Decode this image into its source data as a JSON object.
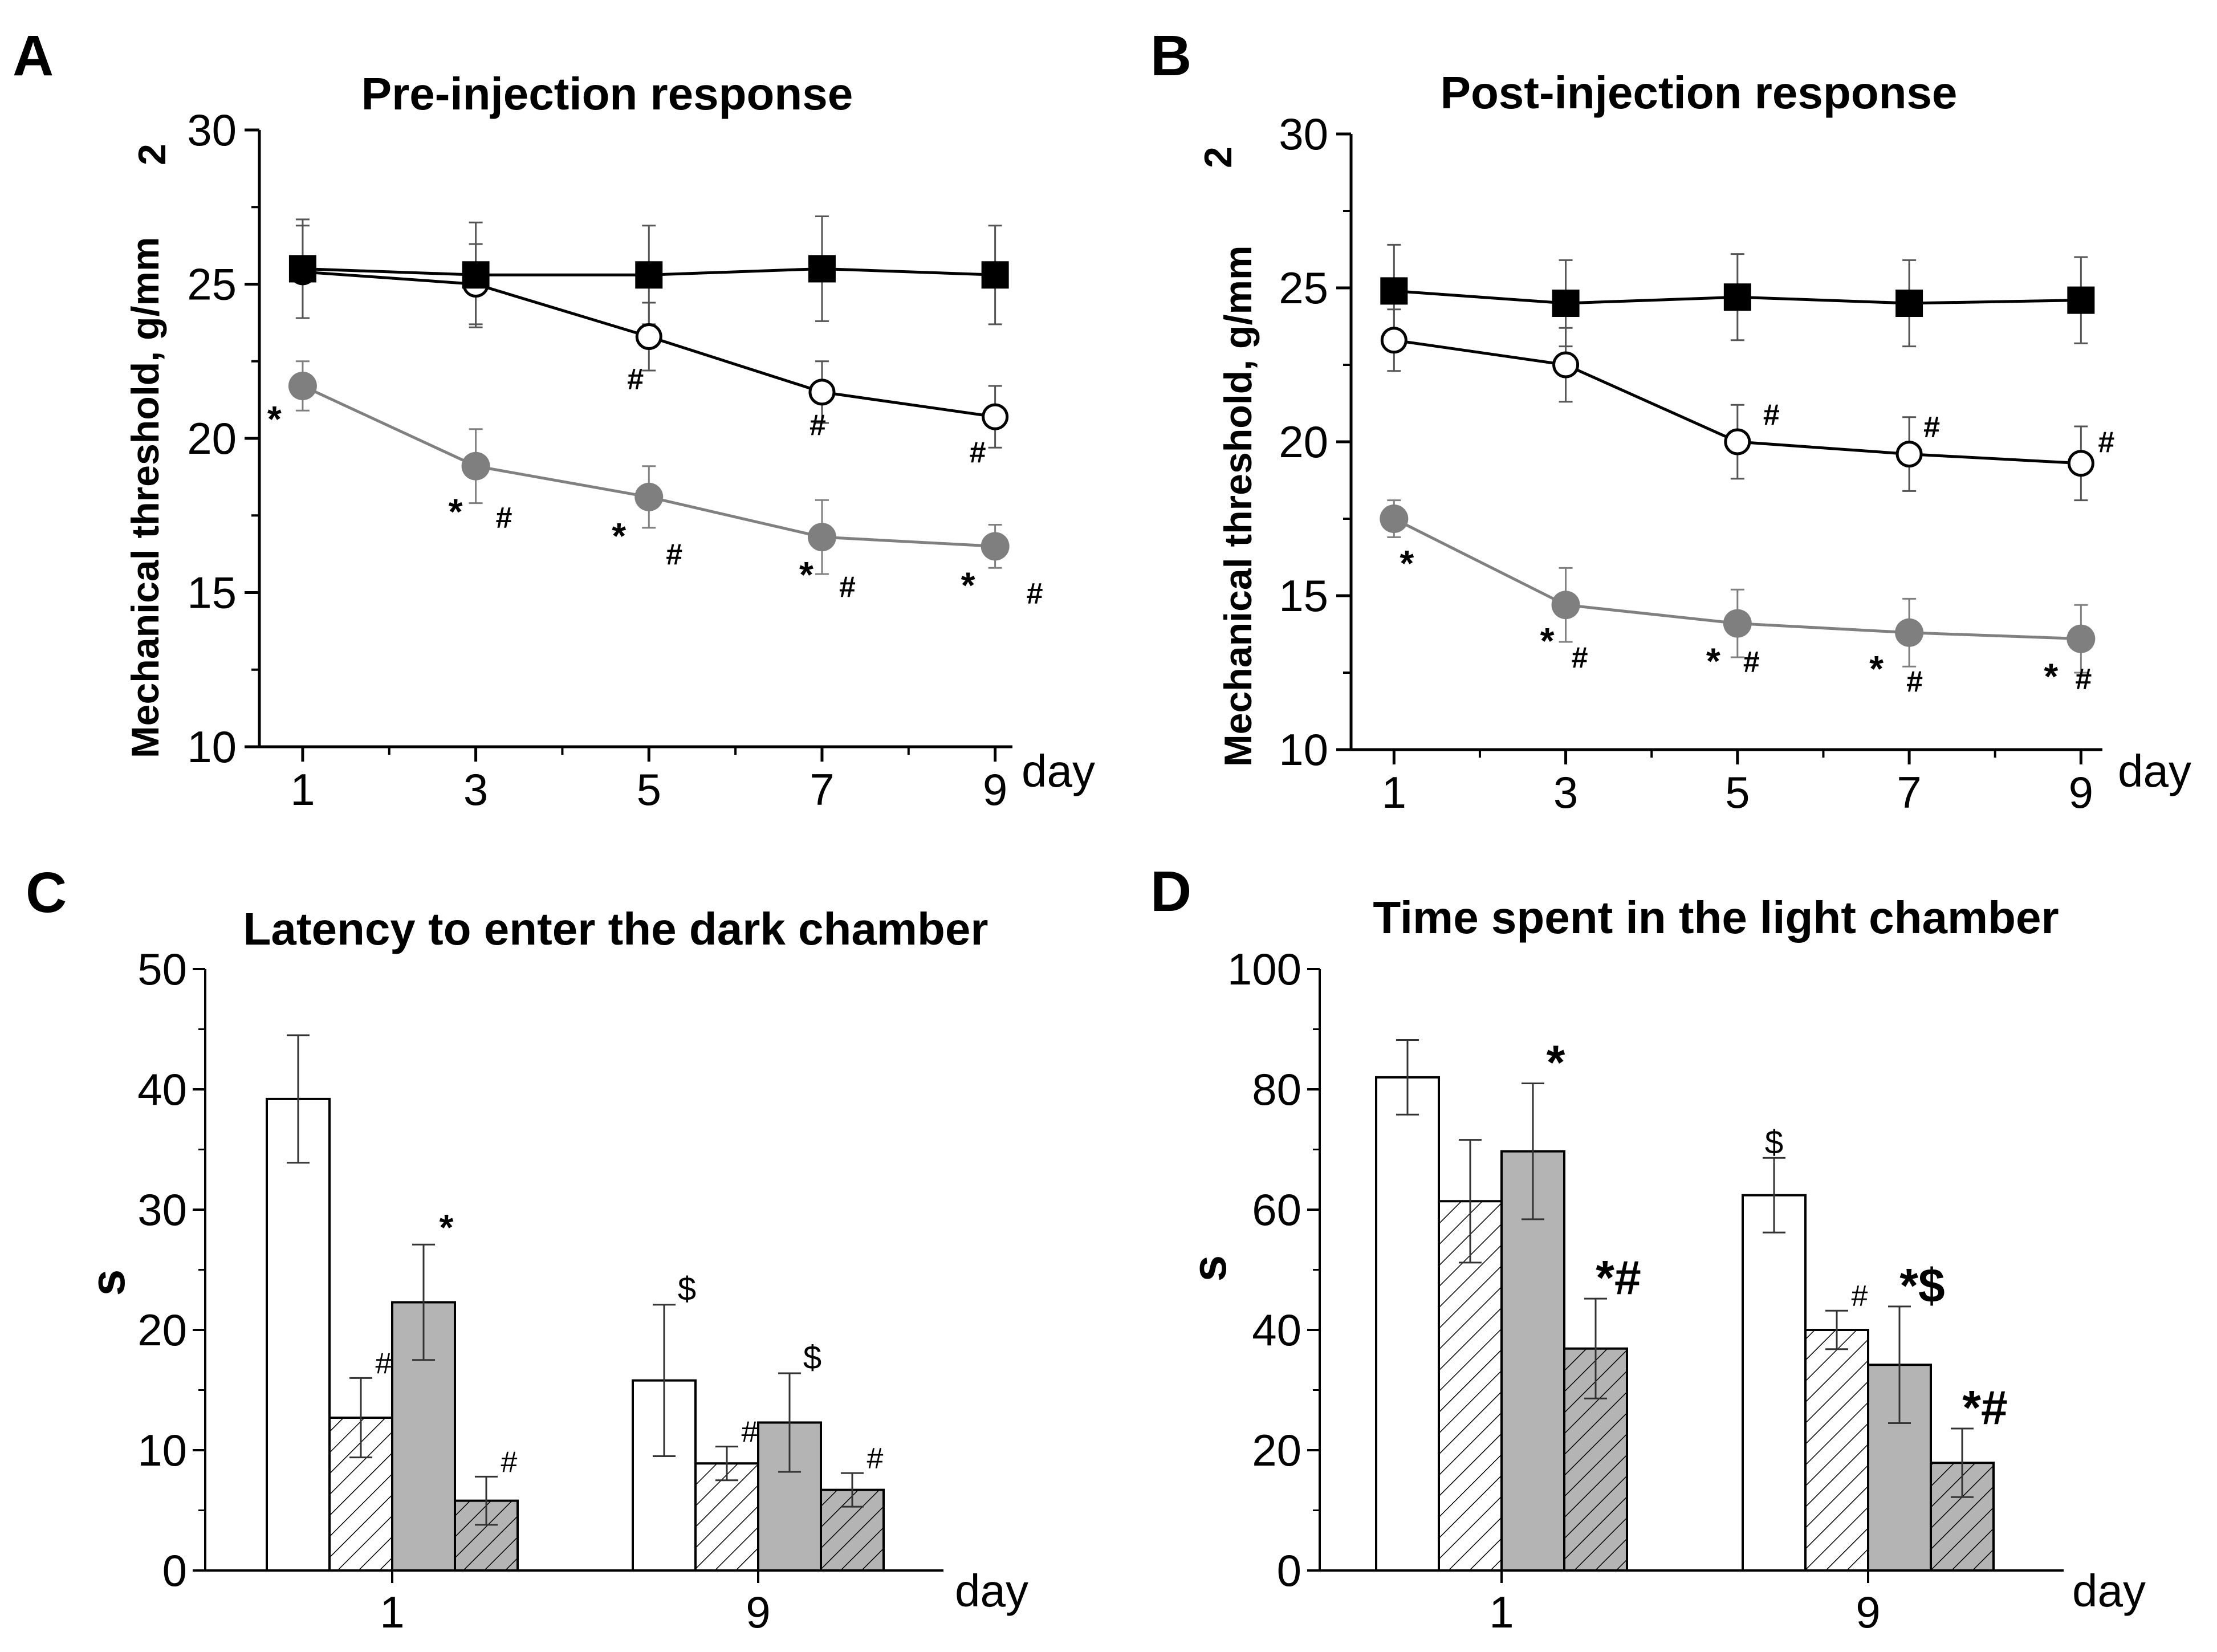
{
  "chart_data": [
    {
      "panel": "A",
      "type": "line",
      "title": "Pre-injection response",
      "xlabel": "day",
      "ylabel": "Mechanical threshold, g/mm",
      "ylabel_sup": "2",
      "x": [
        1,
        3,
        5,
        7,
        9
      ],
      "x_tick_labels": [
        "1",
        "3",
        "5",
        "7",
        "9"
      ],
      "xlim": [
        0.5,
        9.2
      ],
      "ylim": [
        10,
        30
      ],
      "y_ticks": [
        10,
        15,
        20,
        25,
        30
      ],
      "y_tick_labels": [
        "10",
        "15",
        "20",
        "25",
        "30"
      ],
      "series": [
        {
          "name": "filled-square",
          "marker": "square",
          "color": "#000000",
          "line_color": "#000000",
          "values": [
            25.5,
            25.3,
            25.3,
            25.5,
            25.3
          ],
          "errors": [
            1.6,
            1.7,
            1.6,
            1.7,
            1.6
          ]
        },
        {
          "name": "open-circle",
          "marker": "open-circle",
          "color": "#ffffff",
          "line_color": "#000000",
          "values": [
            25.4,
            25.0,
            23.3,
            21.5,
            20.7
          ],
          "errors": [
            1.5,
            1.3,
            1.1,
            1.0,
            1.0
          ]
        },
        {
          "name": "gray-circle",
          "marker": "gray-circle",
          "color": "#7f7f7f",
          "line_color": "#808080",
          "values": [
            21.7,
            19.1,
            18.1,
            16.8,
            16.5
          ],
          "errors": [
            0.8,
            1.2,
            1.0,
            1.2,
            0.7
          ]
        }
      ],
      "annotations": [
        {
          "series": "open-circle",
          "x": 5,
          "text": "#"
        },
        {
          "series": "open-circle",
          "x": 7,
          "text": "#"
        },
        {
          "series": "open-circle",
          "x": 9,
          "text": "#"
        },
        {
          "series": "gray-circle",
          "x": 1,
          "text": "*"
        },
        {
          "series": "gray-circle",
          "x": 3,
          "text": "*"
        },
        {
          "series": "gray-circle",
          "x": 3,
          "text": "#"
        },
        {
          "series": "gray-circle",
          "x": 5,
          "text": "*"
        },
        {
          "series": "gray-circle",
          "x": 5,
          "text": "#"
        },
        {
          "series": "gray-circle",
          "x": 7,
          "text": "*"
        },
        {
          "series": "gray-circle",
          "x": 7,
          "text": "#"
        },
        {
          "series": "gray-circle",
          "x": 9,
          "text": "*"
        },
        {
          "series": "gray-circle",
          "x": 9,
          "text": "#"
        }
      ]
    },
    {
      "panel": "B",
      "type": "line",
      "title": "Post-injection response",
      "xlabel": "day",
      "ylabel": "Mechanical threshold, g/mm",
      "ylabel_sup": "2",
      "x": [
        1,
        3,
        5,
        7,
        9
      ],
      "x_tick_labels": [
        "1",
        "3",
        "5",
        "7",
        "9"
      ],
      "xlim": [
        0.5,
        9.25
      ],
      "ylim": [
        10,
        30
      ],
      "y_ticks": [
        10,
        15,
        20,
        25,
        30
      ],
      "y_tick_labels": [
        "10",
        "15",
        "20",
        "25",
        "30"
      ],
      "series": [
        {
          "name": "filled-square",
          "marker": "square",
          "color": "#000000",
          "line_color": "#000000",
          "values": [
            24.9,
            24.5,
            24.7,
            24.5,
            24.6
          ],
          "errors": [
            1.5,
            1.4,
            1.4,
            1.4,
            1.4
          ]
        },
        {
          "name": "open-circle",
          "marker": "open-circle",
          "color": "#ffffff",
          "line_color": "#000000",
          "values": [
            23.3,
            22.5,
            20.0,
            19.6,
            19.3
          ],
          "errors": [
            1.0,
            1.2,
            1.2,
            1.2,
            1.2
          ]
        },
        {
          "name": "gray-circle",
          "marker": "gray-circle",
          "color": "#7f7f7f",
          "line_color": "#808080",
          "values": [
            17.5,
            14.7,
            14.1,
            13.8,
            13.6
          ],
          "errors": [
            0.6,
            1.2,
            1.1,
            1.1,
            1.1
          ]
        }
      ],
      "annotations": [
        {
          "series": "open-circle",
          "x": 5,
          "text": "#"
        },
        {
          "series": "open-circle",
          "x": 7,
          "text": "#"
        },
        {
          "series": "open-circle",
          "x": 9,
          "text": "#"
        },
        {
          "series": "gray-circle",
          "x": 1,
          "text": "*"
        },
        {
          "series": "gray-circle",
          "x": 3,
          "text": "*"
        },
        {
          "series": "gray-circle",
          "x": 3,
          "text": "#"
        },
        {
          "series": "gray-circle",
          "x": 5,
          "text": "*"
        },
        {
          "series": "gray-circle",
          "x": 5,
          "text": "#"
        },
        {
          "series": "gray-circle",
          "x": 7,
          "text": "*"
        },
        {
          "series": "gray-circle",
          "x": 7,
          "text": "#"
        },
        {
          "series": "gray-circle",
          "x": 9,
          "text": "*"
        },
        {
          "series": "gray-circle",
          "x": 9,
          "text": "#"
        }
      ]
    },
    {
      "panel": "C",
      "type": "bar",
      "title": "Latency to enter the dark chamber",
      "xlabel": "day",
      "ylabel": "s",
      "categories": [
        "1",
        "9"
      ],
      "ylim": [
        0,
        50
      ],
      "y_ticks": [
        0,
        10,
        20,
        30,
        40,
        50
      ],
      "y_tick_labels": [
        "0",
        "10",
        "20",
        "30",
        "40",
        "50"
      ],
      "series": [
        {
          "name": "white",
          "fill": "white",
          "values": [
            39.2,
            15.8
          ],
          "errors": [
            5.3,
            6.3
          ],
          "marks": [
            "",
            "$"
          ]
        },
        {
          "name": "white-hatched",
          "fill": "white-hatched",
          "values": [
            12.7,
            8.9
          ],
          "errors": [
            3.3,
            1.4
          ],
          "marks": [
            "#",
            "#"
          ]
        },
        {
          "name": "gray",
          "fill": "gray",
          "values": [
            22.3,
            12.3
          ],
          "errors": [
            4.8,
            4.1
          ],
          "marks": [
            "*",
            "$"
          ]
        },
        {
          "name": "gray-hatched",
          "fill": "gray-hatched",
          "values": [
            5.8,
            6.7
          ],
          "errors": [
            2.0,
            1.4
          ],
          "marks": [
            "#",
            "#"
          ]
        }
      ]
    },
    {
      "panel": "D",
      "type": "bar",
      "title": "Time spent in the light chamber",
      "xlabel": "day",
      "ylabel": "s",
      "categories": [
        "1",
        "9"
      ],
      "ylim": [
        0,
        100
      ],
      "y_ticks": [
        0,
        20,
        40,
        60,
        80,
        100
      ],
      "y_tick_labels": [
        "0",
        "20",
        "40",
        "60",
        "80",
        "100"
      ],
      "series": [
        {
          "name": "white",
          "fill": "white",
          "values": [
            82.0,
            62.4
          ],
          "errors": [
            6.2,
            6.2
          ],
          "marks": [
            "",
            "$"
          ]
        },
        {
          "name": "white-hatched",
          "fill": "white-hatched",
          "values": [
            61.4,
            40.0
          ],
          "errors": [
            10.2,
            3.2
          ],
          "marks": [
            "",
            "#"
          ]
        },
        {
          "name": "gray",
          "fill": "gray",
          "values": [
            69.7,
            34.2
          ],
          "errors": [
            11.3,
            9.7
          ],
          "marks": [
            "*",
            "*$"
          ]
        },
        {
          "name": "gray-hatched",
          "fill": "gray-hatched",
          "values": [
            36.9,
            17.9
          ],
          "errors": [
            8.3,
            5.7
          ],
          "marks": [
            "*#",
            "*#"
          ]
        }
      ]
    }
  ]
}
